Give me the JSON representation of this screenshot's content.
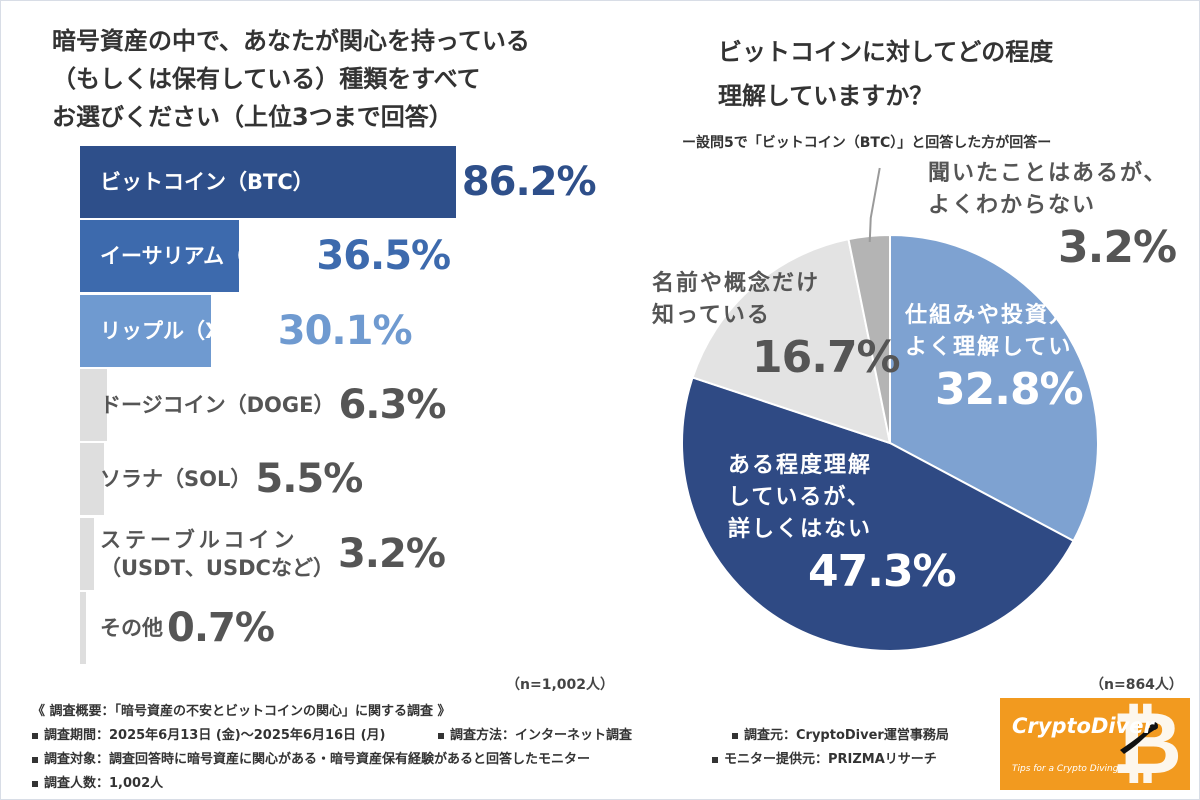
{
  "left_chart": {
    "title_lines": [
      "暗号資産の中で、あなたが関心を持っている",
      "（もしくは保有している）種類をすべて",
      "お選びください（上位3つまで回答）"
    ],
    "n_label": "（n=1,002人）"
  },
  "right_chart": {
    "title_lines": [
      "ビットコインに対してどの程度",
      "理解していますか？"
    ],
    "subtitle": "ー設問5で「ビットコイン（BTC）」と回答した方が回答ー",
    "n_label": "（n=864人）"
  },
  "chart_data": [
    {
      "type": "bar",
      "orientation": "horizontal",
      "title": "暗号資産の中で、あなたが関心を持っている（もしくは保有している）種類をすべてお選びください（上位3つまで回答）",
      "unit": "%",
      "xlim": [
        0,
        100
      ],
      "categories": [
        [
          "ビットコイン（BTC）"
        ],
        [
          "イーサリアム（ETH）"
        ],
        [
          "リップル（XRP）"
        ],
        [
          "ドージコイン（DOGE）"
        ],
        [
          "ソラナ（SOL）"
        ],
        [
          "ステーブルコイン",
          "（USDT、USDCなど）"
        ],
        [
          "その他"
        ]
      ],
      "values": [
        86.2,
        36.5,
        30.1,
        6.3,
        5.5,
        3.2,
        0.7
      ],
      "value_labels": [
        "86.2%",
        "36.5%",
        "30.1%",
        "6.3%",
        "5.5%",
        "3.2%",
        "0.7%"
      ],
      "bar_colors": [
        "#2e4f8a",
        "#3d6aad",
        "#6f9ad0",
        "#dedede",
        "#dedede",
        "#dedede",
        "#dedede"
      ],
      "label_colors": [
        "#ffffff",
        "#ffffff",
        "#ffffff",
        "#555555",
        "#555555",
        "#555555",
        "#555555"
      ],
      "value_colors": [
        "#2e4f8a",
        "#3d6aad",
        "#6f9ad0",
        "#555555",
        "#555555",
        "#555555",
        "#555555"
      ],
      "n": "n=1,002人"
    },
    {
      "type": "pie",
      "title": "ビットコインに対してどの程度理解していますか？",
      "subtitle": "ー設問5で「ビットコイン（BTC）」と回答した方が回答ー",
      "order": "clockwise from top",
      "slices": [
        {
          "label": [
            "仕組みや投資方法を",
            "よく理解している"
          ],
          "value": 32.8,
          "value_label": "32.8%",
          "color": "#7ea2d1",
          "text_color": "#ffffff"
        },
        {
          "label": [
            "ある程度理解",
            "しているが、",
            "詳しくはない"
          ],
          "value": 47.3,
          "value_label": "47.3%",
          "color": "#2f4a84",
          "text_color": "#ffffff"
        },
        {
          "label": [
            "名前や概念だけ",
            "知っている"
          ],
          "value": 16.7,
          "value_label": "16.7%",
          "color": "#e3e3e3",
          "text_color": "#555555"
        },
        {
          "label": [
            "聞いたことはあるが、",
            "よくわからない"
          ],
          "value": 3.2,
          "value_label": "3.2%",
          "color": "#b4b4b4",
          "text_color": "#555555"
        }
      ],
      "n": "n=864人"
    }
  ],
  "footer": {
    "summary": "《 調査概要：「暗号資産の不安とビットコインの関心」に関する調査 》",
    "period": "調査期間：2025年6月13日 (金)〜2025年6月16日 (月)",
    "method": "調査方法：インターネット調査",
    "source": "調査元：CryptoDiver運営事務局",
    "target": "調査対象：調査回答時に暗号資産に関心がある・暗号資産保有経験があると回答したモニター",
    "provider": "モニター提供元：PRIZMAリサーチ",
    "count": "調査人数：1,002人"
  },
  "logo": {
    "brand": "CryptoDiver",
    "tagline": "Tips for a Crypto Diving",
    "symbol": "₿",
    "background": "#f29a1f"
  }
}
